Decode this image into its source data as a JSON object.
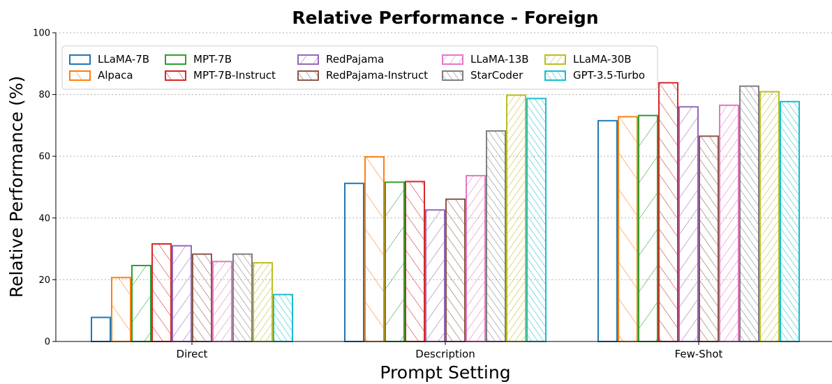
{
  "chart_data": {
    "type": "bar",
    "title": "Relative Performance - Foreign",
    "xlabel": "Prompt Setting",
    "ylabel": "Relative Performance (%)",
    "ylim": [
      0,
      100
    ],
    "yticks": [
      0,
      20,
      40,
      60,
      80,
      100
    ],
    "grid": "horizontal dotted",
    "legend_placement": "top-left",
    "categories": [
      "Direct",
      "Description",
      "Few-Shot"
    ],
    "series": [
      {
        "name": "LLaMA-7B",
        "color": "#1f77b4",
        "hatch": "none",
        "values": [
          7.8,
          51.2,
          71.5
        ]
      },
      {
        "name": "Alpaca",
        "color": "#ff7f0e",
        "hatch": "/",
        "values": [
          20.7,
          59.8,
          72.8
        ]
      },
      {
        "name": "MPT-7B",
        "color": "#2ca02c",
        "hatch": "\\",
        "values": [
          24.6,
          51.6,
          73.2
        ]
      },
      {
        "name": "MPT-7B-Instruct",
        "color": "#d62728",
        "hatch": "//",
        "values": [
          31.6,
          51.8,
          83.8
        ]
      },
      {
        "name": "RedPajama",
        "color": "#9467bd",
        "hatch": "\\\\",
        "values": [
          31.0,
          42.6,
          76.0
        ]
      },
      {
        "name": "RedPajama-Instruct",
        "color": "#8c564b",
        "hatch": "///",
        "values": [
          28.3,
          46.1,
          66.5
        ]
      },
      {
        "name": "LLaMA-13B",
        "color": "#e377c2",
        "hatch": "\\\\\\",
        "values": [
          25.9,
          53.7,
          76.5
        ]
      },
      {
        "name": "StarCoder",
        "color": "#7f7f7f",
        "hatch": "////",
        "values": [
          28.3,
          68.2,
          82.7
        ]
      },
      {
        "name": "LLaMA-30B",
        "color": "#bcbd22",
        "hatch": "\\\\\\\\",
        "values": [
          25.5,
          79.8,
          80.9
        ]
      },
      {
        "name": "GPT-3.5-Turbo",
        "color": "#17becf",
        "hatch": "/////",
        "values": [
          15.2,
          78.7,
          77.7
        ]
      }
    ]
  }
}
